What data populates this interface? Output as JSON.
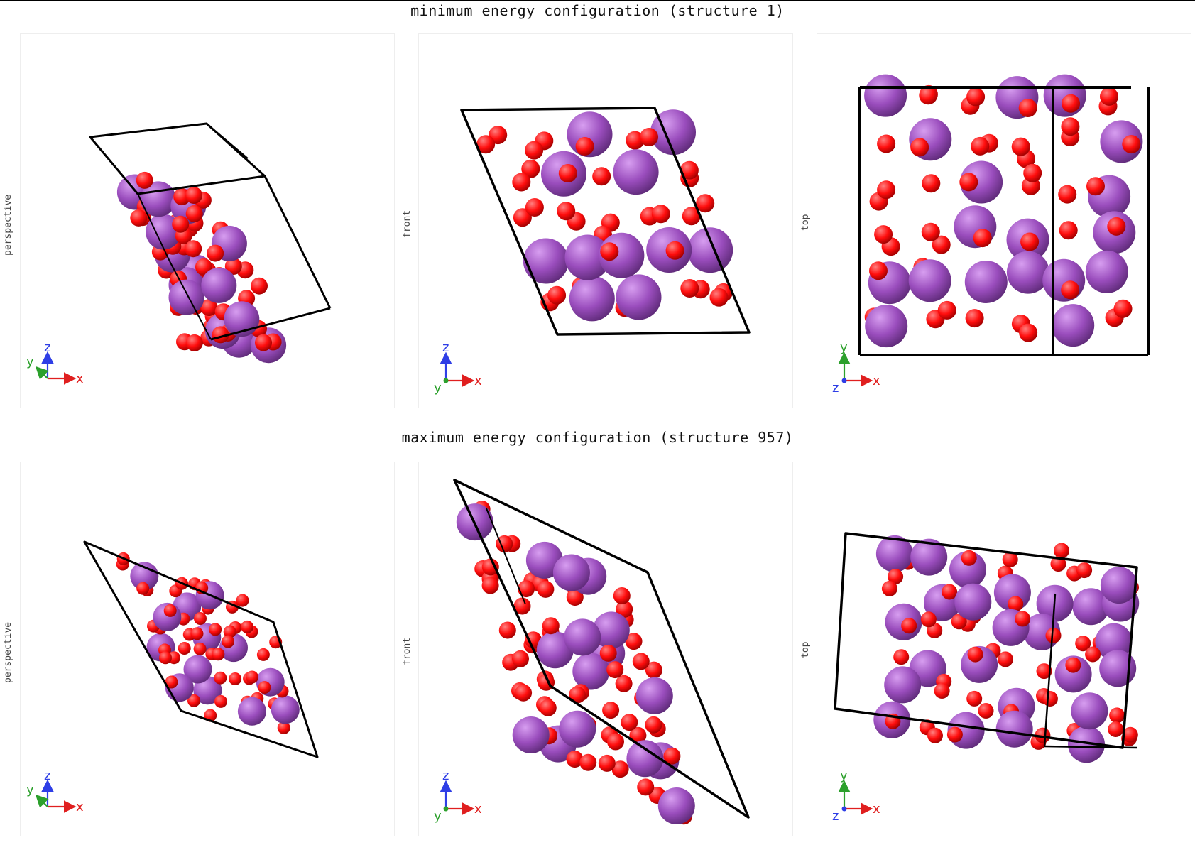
{
  "sections": [
    {
      "title": "minimum energy configuration (structure 1)",
      "panels": [
        {
          "view": "perspective",
          "triad": "perspective",
          "axes": {
            "z": "z",
            "y": "y",
            "x": "x"
          }
        },
        {
          "view": "front",
          "triad": "front",
          "axes": {
            "z": "z",
            "y": "y",
            "x": "x"
          }
        },
        {
          "view": "top",
          "triad": "top",
          "axes": {
            "z": "z",
            "y": "y",
            "x": "x"
          }
        }
      ]
    },
    {
      "title": "maximum energy configuration (structure 957)",
      "panels": [
        {
          "view": "perspective",
          "triad": "perspective",
          "axes": {
            "z": "z",
            "y": "y",
            "x": "x"
          }
        },
        {
          "view": "front",
          "triad": "front",
          "axes": {
            "z": "z",
            "y": "y",
            "x": "x"
          }
        },
        {
          "view": "top",
          "triad": "top",
          "axes": {
            "z": "z",
            "y": "y",
            "x": "x"
          }
        }
      ]
    }
  ],
  "colors": {
    "purple_atom": "#9a4dbd",
    "red_atom": "#ff0d0d",
    "cell_edges": "#000000",
    "axis_x": "#e01f1f",
    "axis_y": "#2ca02c",
    "axis_z": "#2e3ee6"
  }
}
